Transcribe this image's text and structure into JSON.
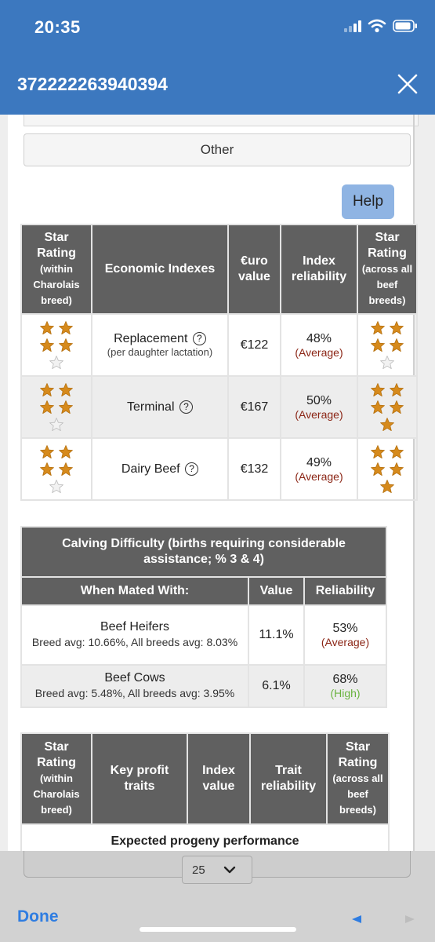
{
  "status_bar": {
    "time": "20:35"
  },
  "header": {
    "title": "372222263940394"
  },
  "buttons": {
    "other": "Other",
    "help": "Help"
  },
  "economic_table": {
    "headers": {
      "star_within_title": "Star Rating",
      "star_within_sub": "(within Charolais breed)",
      "index": "Economic Indexes",
      "euro": "€uro value",
      "reliability": "Index reliability",
      "star_across_title": "Star Rating",
      "star_across_sub": "(across all beef breeds)"
    },
    "rows": [
      {
        "name": "Replacement",
        "sub": "(per daughter lactation)",
        "value": "€122",
        "rel_pct": "48%",
        "rel_label": "(Average)",
        "stars_within": 4,
        "stars_across": 4
      },
      {
        "name": "Terminal",
        "sub": "",
        "value": "€167",
        "rel_pct": "50%",
        "rel_label": "(Average)",
        "stars_within": 4,
        "stars_across": 5
      },
      {
        "name": "Dairy Beef",
        "sub": "",
        "value": "€132",
        "rel_pct": "49%",
        "rel_label": "(Average)",
        "stars_within": 4,
        "stars_across": 5
      }
    ]
  },
  "calving_table": {
    "title": "Calving Difficulty (births requiring considerable assistance; % 3 & 4)",
    "headers": {
      "mated": "When Mated With:",
      "value": "Value",
      "reliability": "Reliability"
    },
    "rows": [
      {
        "name": "Beef Heifers",
        "detail": "Breed avg: 10.66%, All breeds avg: 8.03%",
        "value": "11.1%",
        "rel_pct": "53%",
        "rel_label": "(Average)"
      },
      {
        "name": "Beef Cows",
        "detail": "Breed avg: 5.48%, All breeds avg: 3.95%",
        "value": "6.1%",
        "rel_pct": "68%",
        "rel_label": "(High)"
      }
    ]
  },
  "key_table": {
    "headers": {
      "star_within_title": "Star Rating",
      "star_within_sub": "(within Charolais breed)",
      "traits": "Key profit traits",
      "index_value": "Index value",
      "trait_rel": "Trait reliability",
      "star_across_title": "Star Rating",
      "star_across_sub": "(across all beef breeds)"
    },
    "section": "Expected progeny performance"
  },
  "bottom": {
    "pager_value": "25",
    "done": "Done"
  },
  "colors": {
    "header_blue": "#3c78bf",
    "table_header": "#606060",
    "star_gold": "#d68a1c",
    "rel_average": "#8b2515",
    "rel_high": "#69b33e"
  }
}
